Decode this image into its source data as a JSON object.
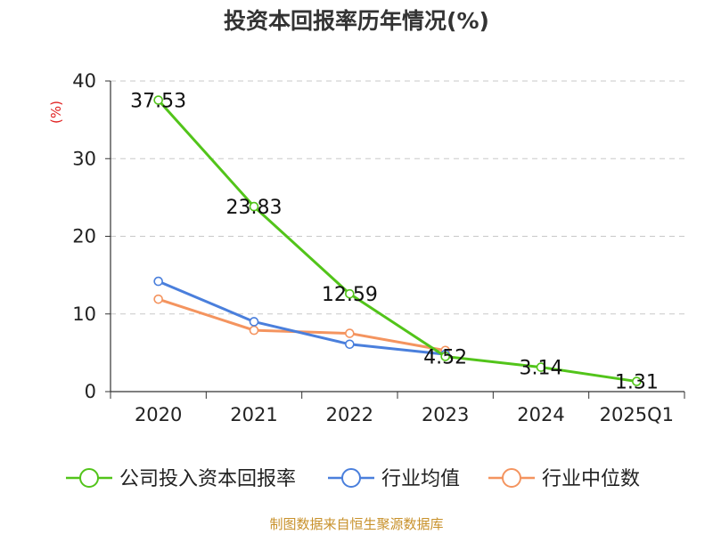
{
  "chart_data": {
    "type": "line",
    "title": "投资本回报率历年情况(%)",
    "ylabel": "(%)",
    "xlabel": "",
    "ylim": [
      0,
      40
    ],
    "yticks": [
      0,
      10,
      20,
      30,
      40
    ],
    "categories": [
      "2020",
      "2021",
      "2022",
      "2023",
      "2024",
      "2025Q1"
    ],
    "grid": true,
    "legend_position": "bottom",
    "series": [
      {
        "name": "公司投入资本回报率",
        "color": "#52c41a",
        "values": [
          37.53,
          23.83,
          12.59,
          4.52,
          3.14,
          1.31
        ],
        "labels": [
          "37.53",
          "23.83",
          "12.59",
          "4.52",
          "3.14",
          "1.31"
        ]
      },
      {
        "name": "行业均值",
        "color": "#4a7fdc",
        "values": [
          14.2,
          9.0,
          6.1,
          4.8,
          null,
          null
        ]
      },
      {
        "name": "行业中位数",
        "color": "#f4945f",
        "values": [
          11.9,
          7.9,
          7.5,
          5.3,
          null,
          null
        ]
      }
    ]
  },
  "source": "制图数据来自恒生聚源数据库"
}
